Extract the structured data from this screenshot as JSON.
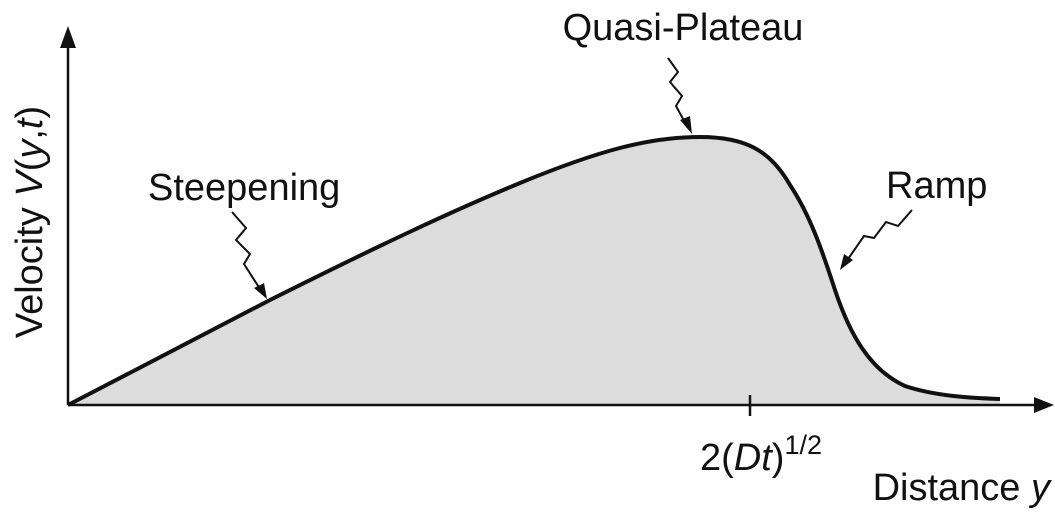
{
  "diagram": {
    "labels": {
      "plateau": "Quasi-Plateau",
      "steepening": "Steepening",
      "ramp": "Ramp"
    },
    "y_axis_label": [
      "Velocity ",
      "V",
      "(",
      "y",
      ",",
      "t",
      ")"
    ],
    "x_tick_label": [
      "2(",
      "Dt",
      ")",
      "1/2"
    ],
    "x_axis_label": [
      "Distance ",
      "y"
    ]
  }
}
